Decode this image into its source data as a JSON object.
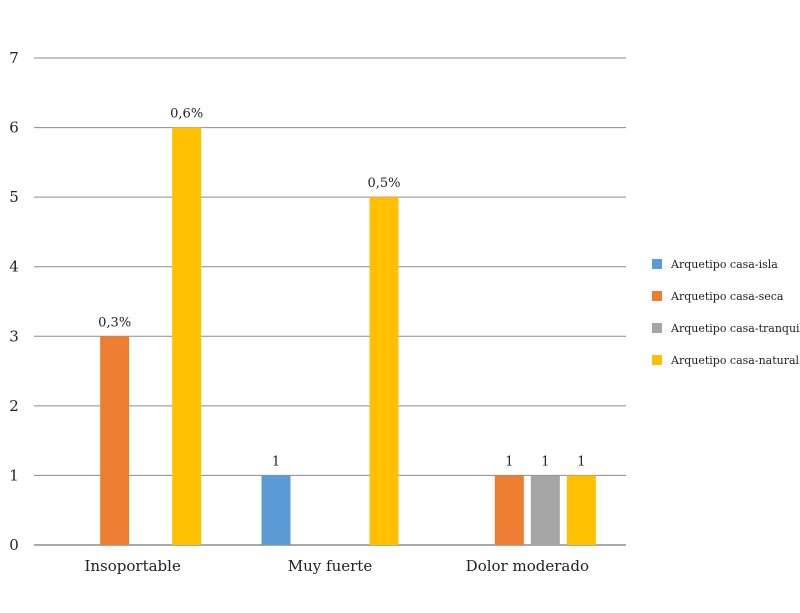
{
  "chart_data": {
    "type": "bar",
    "categories": [
      "Insoportable",
      "Muy fuerte",
      "Dolor moderado"
    ],
    "series": [
      {
        "name": "Arquetipo casa-isla",
        "color": "#5b9bd5",
        "values": [
          0,
          1,
          0
        ],
        "labels": [
          "",
          "1",
          ""
        ]
      },
      {
        "name": "Arquetipo casa-seca",
        "color": "#ed7d31",
        "values": [
          3,
          0,
          1
        ],
        "labels": [
          "0,3%",
          "",
          "1"
        ]
      },
      {
        "name": "Arquetipo casa-tranquila",
        "color": "#a5a5a5",
        "values": [
          0,
          0,
          1
        ],
        "labels": [
          "",
          "",
          "1"
        ]
      },
      {
        "name": "Arquetipo casa-natural",
        "color": "#ffc000",
        "values": [
          6,
          5,
          1
        ],
        "labels": [
          "0,6%",
          "0,5%",
          "1"
        ]
      }
    ],
    "yticks": [
      "0",
      "1",
      "2",
      "3",
      "4",
      "5",
      "6",
      "7"
    ],
    "ylim": [
      0,
      7
    ],
    "grid": true,
    "legend": "right",
    "title": "",
    "xlabel": "",
    "ylabel": ""
  }
}
